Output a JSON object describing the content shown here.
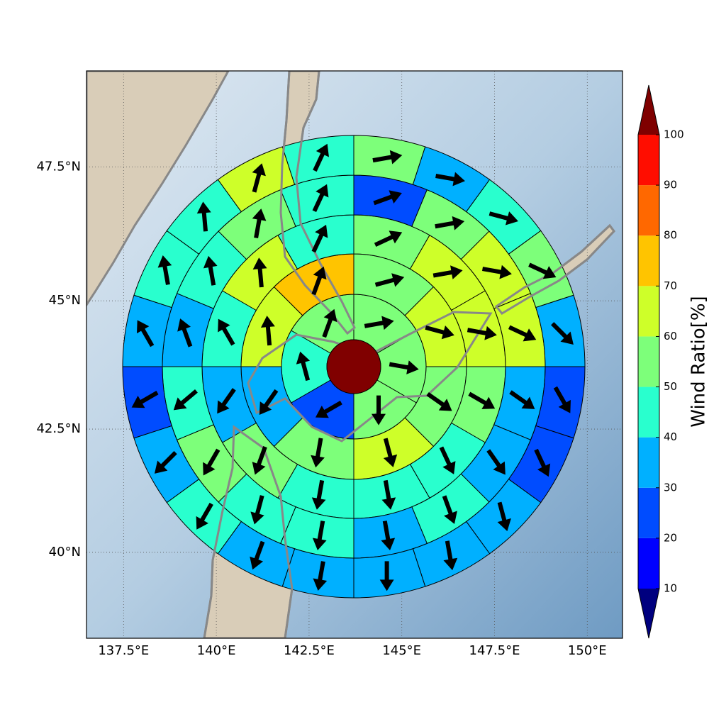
{
  "chart_data": {
    "type": "polar-sector-map",
    "xlim": [
      136.5,
      150.95
    ],
    "ylim": [
      38.2,
      49.22
    ],
    "xticks": [
      {
        "value": 137.5,
        "label": "137.5°E"
      },
      {
        "value": 140,
        "label": "140°E"
      },
      {
        "value": 142.5,
        "label": "142.5°E"
      },
      {
        "value": 145,
        "label": "145°E"
      },
      {
        "value": 147.5,
        "label": "147.5°E"
      },
      {
        "value": 150,
        "label": "150°E"
      }
    ],
    "yticks": [
      {
        "value": 40,
        "label": "40°N"
      },
      {
        "value": 42.5,
        "label": "42.5°N"
      },
      {
        "value": 45,
        "label": "45°N"
      },
      {
        "value": 47.5,
        "label": "47.5°N"
      }
    ],
    "grid": true,
    "arrow_color": "#000000",
    "rings": [
      {
        "values": [
          55,
          55,
          55,
          25,
          45,
          55
        ],
        "directions": [
          80,
          100,
          180,
          240,
          345,
          20
        ]
      },
      {
        "values": [
          55,
          65,
          55,
          65,
          55,
          35,
          65,
          75
        ],
        "directions": [
          75,
          105,
          125,
          165,
          190,
          215,
          355,
          20
        ]
      },
      {
        "values": [
          55,
          65,
          65,
          55,
          45,
          45,
          45,
          55,
          35,
          45,
          65,
          45
        ],
        "directions": [
          65,
          80,
          100,
          120,
          155,
          170,
          190,
          200,
          215,
          330,
          355,
          25
        ]
      },
      {
        "values": [
          25,
          55,
          65,
          65,
          35,
          35,
          45,
          35,
          45,
          45,
          55,
          45,
          35,
          45,
          55,
          45
        ],
        "directions": [
          70,
          80,
          100,
          115,
          125,
          145,
          160,
          170,
          190,
          195,
          210,
          230,
          340,
          350,
          10,
          25
        ]
      },
      {
        "values": [
          55,
          35,
          45,
          55,
          35,
          25,
          25,
          35,
          35,
          35,
          35,
          35,
          45,
          35,
          25,
          35,
          45,
          45,
          65,
          45
        ],
        "directions": [
          80,
          100,
          105,
          115,
          135,
          150,
          155,
          165,
          170,
          180,
          190,
          200,
          210,
          225,
          240,
          330,
          350,
          355,
          15,
          25
        ]
      }
    ],
    "colorbar": {
      "label": "Wind Ratio[%]",
      "ticks": [
        10,
        20,
        30,
        40,
        50,
        60,
        70,
        80,
        90,
        100
      ],
      "colors": [
        "#00007f",
        "#0000ff",
        "#004cff",
        "#00b0ff",
        "#29ffce",
        "#7dff7a",
        "#ceff29",
        "#ffc400",
        "#ff6800",
        "#ff0d00",
        "#7f0000"
      ],
      "extend": "both"
    }
  }
}
